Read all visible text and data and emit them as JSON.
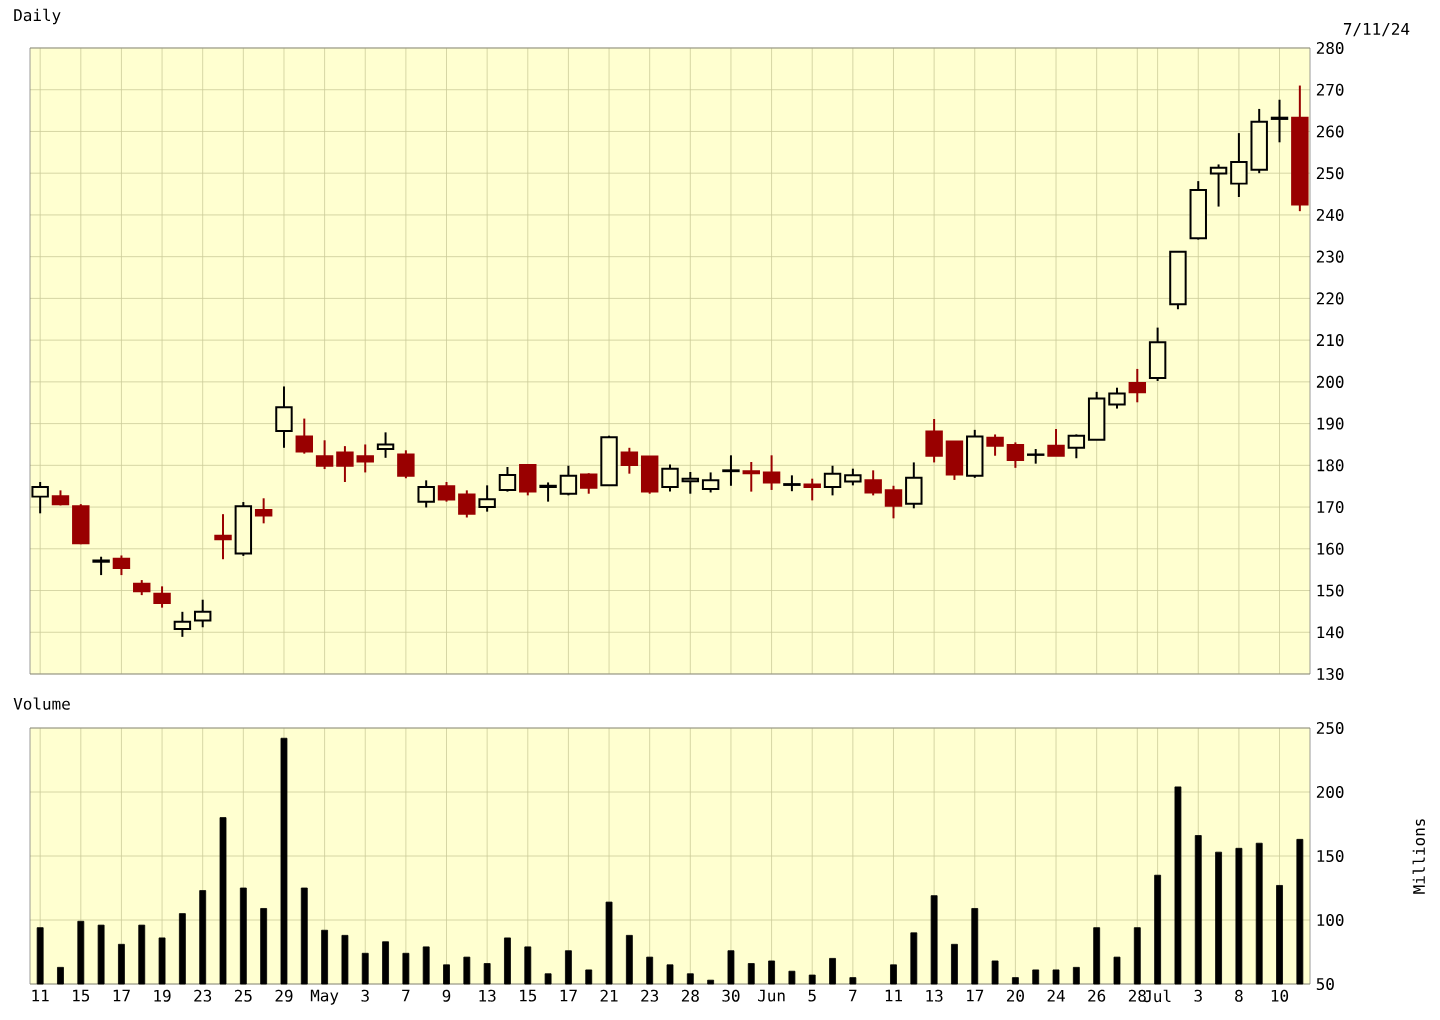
{
  "chart_data": [
    {
      "type": "candlestick",
      "title": "Daily",
      "annotations": [
        "7/11/24"
      ],
      "categories": [
        null,
        null,
        null,
        null,
        null,
        null,
        null,
        null,
        null,
        null,
        null,
        null,
        null,
        null,
        null,
        null,
        null,
        null,
        null,
        null,
        null,
        null,
        null,
        null,
        null,
        null,
        null,
        null,
        null,
        null,
        null,
        null,
        null,
        null,
        null,
        null,
        null,
        null,
        null,
        null,
        null,
        null,
        null,
        null,
        null,
        null,
        null,
        null,
        null,
        null,
        null,
        null,
        null,
        null,
        null,
        null,
        null,
        null,
        null,
        null,
        null,
        null,
        null
      ],
      "ohlc": [
        [
          172.5,
          176,
          168.5,
          174.8
        ],
        [
          172.6,
          174,
          170.4,
          170.7
        ],
        [
          170.2,
          170.7,
          161.1,
          161.3
        ],
        [
          156.9,
          158.1,
          153.7,
          157.2
        ],
        [
          157.6,
          158.4,
          153.7,
          155.4
        ],
        [
          151.6,
          152.5,
          148.9,
          149.8
        ],
        [
          149.2,
          151,
          145.9,
          147
        ],
        [
          140.8,
          144.9,
          138.9,
          142.5
        ],
        [
          142.8,
          147.8,
          141.2,
          144.9
        ],
        [
          163.1,
          168.3,
          157.5,
          162.3
        ],
        [
          158.9,
          171.2,
          158.3,
          170.2
        ],
        [
          169.3,
          172.1,
          166.1,
          168
        ],
        [
          188.2,
          198.9,
          184.2,
          193.9
        ],
        [
          186.9,
          191.2,
          182.8,
          183.3
        ],
        [
          182.2,
          186,
          179.1,
          179.9
        ],
        [
          183.1,
          184.6,
          176,
          179.9
        ],
        [
          182.2,
          185,
          178.3,
          180.9
        ],
        [
          183.9,
          187.9,
          181.8,
          185
        ],
        [
          182.6,
          183.6,
          176.9,
          177.5
        ],
        [
          171.3,
          176.4,
          169.9,
          174.8
        ],
        [
          175,
          176,
          171.3,
          171.8
        ],
        [
          173,
          174,
          167.5,
          168.4
        ],
        [
          170,
          175.2,
          168.9,
          171.9
        ],
        [
          174.1,
          179.6,
          173.7,
          177.7
        ],
        [
          180.1,
          180.1,
          172.8,
          173.7
        ],
        [
          174.8,
          175.9,
          171.3,
          175.1
        ],
        [
          173.2,
          179.9,
          172.8,
          177.5
        ],
        [
          177.8,
          178.1,
          173.2,
          174.6
        ],
        [
          175.2,
          187.1,
          175.1,
          186.7
        ],
        [
          183.1,
          184.2,
          178,
          180.1
        ],
        [
          182.1,
          182.2,
          173.2,
          173.7
        ],
        [
          174.8,
          180.2,
          173.7,
          179.2
        ],
        [
          176.2,
          178.4,
          173.2,
          176.8
        ],
        [
          174.3,
          178.3,
          173.5,
          176.4
        ],
        [
          178.6,
          182.4,
          175.1,
          178.8
        ],
        [
          178.6,
          180.8,
          173.7,
          178.1
        ],
        [
          178.3,
          182.4,
          174.1,
          175.9
        ],
        [
          175.3,
          177.6,
          173.8,
          175.5
        ],
        [
          175.4,
          176.8,
          171.6,
          174.8
        ],
        [
          174.8,
          179.9,
          172.8,
          178
        ],
        [
          176.1,
          179.2,
          175.2,
          177.6
        ],
        [
          176.4,
          178.8,
          172.8,
          173.5
        ],
        [
          174,
          175.1,
          167.3,
          170.3
        ],
        [
          170.8,
          180.7,
          169.7,
          177
        ],
        [
          188.1,
          191.1,
          180.7,
          182.3
        ],
        [
          185.7,
          185.7,
          176.5,
          177.8
        ],
        [
          177.5,
          188.5,
          177,
          186.9
        ],
        [
          186.6,
          187.4,
          182.3,
          184.7
        ],
        [
          184.9,
          185.5,
          179.4,
          181.3
        ],
        [
          182.5,
          183.9,
          180.4,
          182.6
        ],
        [
          184.7,
          188.7,
          182.3,
          182.3
        ],
        [
          184.2,
          187.4,
          181.7,
          187.1
        ],
        [
          186.1,
          197.6,
          186.1,
          196
        ],
        [
          194.6,
          198.6,
          193.6,
          197.2
        ],
        [
          199.7,
          203.1,
          195.1,
          197.5
        ],
        [
          200.9,
          213,
          200.2,
          209.5
        ],
        [
          218.6,
          231.2,
          217.4,
          231.2
        ],
        [
          234.4,
          248.1,
          234.1,
          246
        ],
        [
          249.9,
          252.1,
          242,
          251.3
        ],
        [
          247.5,
          259.6,
          244.3,
          252.7
        ],
        [
          250.8,
          265.4,
          250,
          262.3
        ],
        [
          263,
          267.6,
          257.4,
          263.3
        ],
        [
          263.3,
          271,
          240.9,
          242.5
        ]
      ],
      "colors": [
        "#000000",
        "#990000",
        "#990000",
        "#000000",
        "#990000",
        "#990000",
        "#990000",
        "#000000",
        "#000000",
        "#990000",
        "#000000",
        "#990000",
        "#000000",
        "#990000",
        "#990000",
        "#990000",
        "#990000",
        "#000000",
        "#990000",
        "#000000",
        "#990000",
        "#990000",
        "#000000",
        "#000000",
        "#990000",
        "#000000",
        "#000000",
        "#990000",
        "#000000",
        "#990000",
        "#990000",
        "#000000",
        "#000000",
        "#000000",
        "#000000",
        "#990000",
        "#990000",
        "#000000",
        "#990000",
        "#000000",
        "#000000",
        "#990000",
        "#990000",
        "#000000",
        "#990000",
        "#990000",
        "#000000",
        "#990000",
        "#990000",
        "#000000",
        "#990000",
        "#000000",
        "#000000",
        "#000000",
        "#990000",
        "#000000",
        "#000000",
        "#000000",
        "#000000",
        "#000000",
        "#000000",
        "#000000",
        "#990000"
      ],
      "ylim": [
        130,
        280
      ],
      "yticks": [
        130,
        140,
        150,
        160,
        170,
        180,
        190,
        200,
        210,
        220,
        230,
        240,
        250,
        260,
        270,
        280
      ],
      "grid": true,
      "tick_labels": "y"
    },
    {
      "type": "bar",
      "title": "Volume",
      "ylabel": "Millions",
      "categories": [
        "11",
        null,
        "15",
        null,
        "17",
        null,
        "19",
        null,
        "23",
        null,
        "25",
        null,
        "29",
        null,
        "May",
        null,
        "3",
        null,
        "7",
        null,
        "9",
        null,
        "13",
        null,
        "15",
        null,
        "17",
        null,
        "21",
        null,
        "23",
        null,
        "28",
        null,
        "30",
        null,
        "Jun",
        null,
        "5",
        null,
        "7",
        null,
        "11",
        null,
        "13",
        null,
        "17",
        null,
        "20",
        null,
        "24",
        null,
        "26",
        null,
        "28",
        "Jul",
        null,
        "3",
        null,
        "8",
        null,
        "10",
        null
      ],
      "values": [
        94,
        63,
        99,
        96,
        81,
        96,
        86,
        105,
        123,
        180,
        125,
        109,
        242,
        125,
        92,
        88,
        74,
        83,
        74,
        79,
        65,
        71,
        66,
        86,
        79,
        58,
        76,
        61,
        114,
        88,
        71,
        65,
        58,
        53,
        76,
        66,
        68,
        60,
        57,
        70,
        55,
        null,
        65,
        90,
        119,
        81,
        109,
        68,
        55,
        61,
        61,
        63,
        94,
        71,
        94,
        135,
        204,
        166,
        153,
        156,
        160,
        127,
        163
      ],
      "color": "#000000",
      "ylim": [
        50,
        250
      ],
      "yticks": [
        50,
        100,
        150,
        200,
        250
      ],
      "grid": true
    }
  ]
}
